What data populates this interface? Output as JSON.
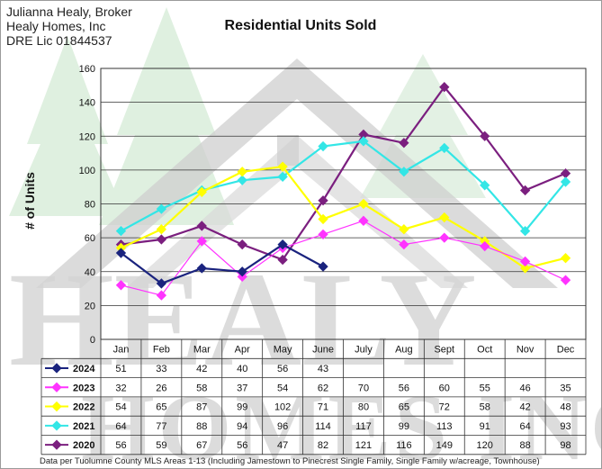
{
  "header": {
    "line1": "Julianna Healy, Broker",
    "line2": "Healy Homes, Inc",
    "line3": "DRE Lic 01844537"
  },
  "footnote": "Data per Tuolumne County MLS Areas 1-13 (Including Jamestown to Pinecrest Single Family, Single Family w/acreage, Townhouse)",
  "watermark": {
    "logo_text": "HEALY HOMES INC."
  },
  "chart_data": {
    "type": "line",
    "title": "Residential Units Sold",
    "xlabel": "",
    "ylabel": "# of Units",
    "ylim": [
      0,
      160
    ],
    "yticks": [
      0,
      20,
      40,
      60,
      80,
      100,
      120,
      140,
      160
    ],
    "grid": "horizontal",
    "legend": "data-table-left",
    "categories": [
      "Jan",
      "Feb",
      "Mar",
      "Apr",
      "May",
      "June",
      "July",
      "Aug",
      "Sept",
      "Oct",
      "Nov",
      "Dec"
    ],
    "series": [
      {
        "name": "2024",
        "color": "#1a237e",
        "values": [
          51,
          33,
          42,
          40,
          56,
          43,
          null,
          null,
          null,
          null,
          null,
          null
        ]
      },
      {
        "name": "2023",
        "color": "#ff33ff",
        "values": [
          32,
          26,
          58,
          37,
          54,
          62,
          70,
          56,
          60,
          55,
          46,
          35
        ]
      },
      {
        "name": "2022",
        "color": "#ffff00",
        "values": [
          54,
          65,
          87,
          99,
          102,
          71,
          80,
          65,
          72,
          58,
          42,
          48
        ]
      },
      {
        "name": "2021",
        "color": "#33e6e6",
        "values": [
          64,
          77,
          88,
          94,
          96,
          114,
          117,
          99,
          113,
          91,
          64,
          93
        ]
      },
      {
        "name": "2020",
        "color": "#7b1f7f",
        "values": [
          56,
          59,
          67,
          56,
          47,
          82,
          121,
          116,
          149,
          120,
          88,
          98
        ]
      }
    ]
  }
}
